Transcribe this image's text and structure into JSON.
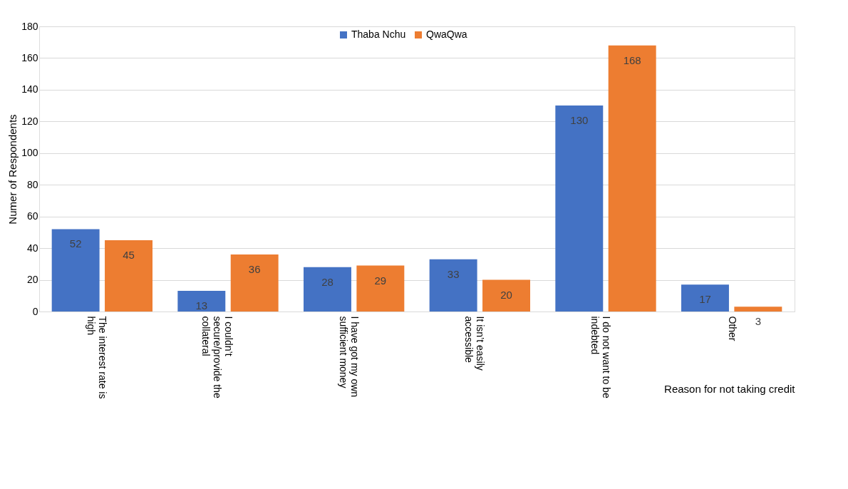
{
  "chart_data": {
    "type": "bar",
    "xlabel": "Reason for not taking credit",
    "ylabel": "Numer of Respondents",
    "categories": [
      "The interest rate is high",
      "I couldn’t secure/provide the collateral",
      "I have got my own sufficient money",
      "It isn’t easily accessible",
      "I do not want to be indebted",
      "Other"
    ],
    "series": [
      {
        "name": "Thaba Nchu",
        "color": "#4472c4",
        "values": [
          52,
          13,
          28,
          33,
          130,
          17
        ]
      },
      {
        "name": "QwaQwa",
        "color": "#ed7d31",
        "values": [
          45,
          36,
          29,
          20,
          168,
          3
        ]
      }
    ],
    "ylim": [
      0,
      180
    ],
    "yticks": [
      0,
      20,
      40,
      60,
      80,
      100,
      120,
      140,
      160,
      180
    ],
    "grid": "y",
    "legend": "top",
    "data_labels": true
  }
}
